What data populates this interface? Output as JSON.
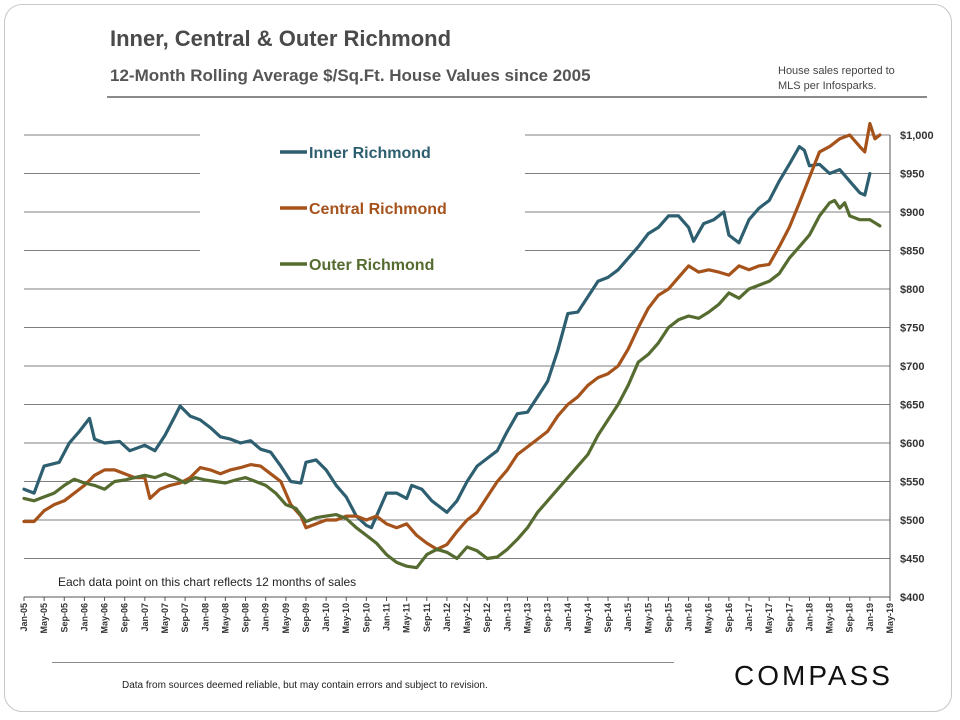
{
  "header": {
    "title": "Inner, Central & Outer Richmond",
    "subtitle": "12-Month Rolling Average $/Sq.Ft. House Values since 2005",
    "source_line1": "House sales reported to",
    "source_line2": "MLS per Infosparks."
  },
  "footer": {
    "note": "Each data point on this chart reflects 12 months of sales",
    "disclaimer": "Data from sources deemed reliable, but may contain errors and subject to revision.",
    "brand": "COMPASS"
  },
  "colors": {
    "inner": "#2e5f70",
    "central": "#a5521b",
    "outer": "#556b2f",
    "grid": "#7f7f7f"
  },
  "chart_data": {
    "type": "line",
    "title": "12-Month Rolling Average $/Sq.Ft. House Values since 2005",
    "ylim": [
      400,
      1000
    ],
    "yticks": [
      400,
      450,
      500,
      550,
      600,
      650,
      700,
      750,
      800,
      850,
      900,
      950,
      1000
    ],
    "ytick_labels": [
      "$400",
      "$450",
      "$500",
      "$550",
      "$600",
      "$650",
      "$700",
      "$750",
      "$800",
      "$850",
      "$900",
      "$950",
      "$1,000"
    ],
    "x_labels": [
      "Jan-05",
      "May-05",
      "Sep-05",
      "Jan-06",
      "May-06",
      "Sep-06",
      "Jan-07",
      "May-07",
      "Sep-07",
      "Jan-08",
      "May-08",
      "Sep-08",
      "Jan-09",
      "May-09",
      "Sep-09",
      "Jan-10",
      "May-10",
      "Sep-10",
      "Jan-11",
      "May-11",
      "Sep-11",
      "Jan-12",
      "May-12",
      "Sep-12",
      "Jan-13",
      "May-13",
      "Sep-13",
      "Jan-14",
      "May-14",
      "Sep-14",
      "Jan-15",
      "May-15",
      "Sep-15",
      "Jan-16",
      "May-16",
      "Sep-16",
      "Jan-17",
      "May-17",
      "Sep-17",
      "Jan-18",
      "May-18",
      "Sep-18",
      "Jan-19",
      "May-19"
    ],
    "grid": "horizontal",
    "legend_position": "top-left",
    "series": [
      {
        "name": "Inner Richmond",
        "key": "inner",
        "points": [
          [
            0,
            540
          ],
          [
            2,
            535
          ],
          [
            4,
            570
          ],
          [
            7,
            575
          ],
          [
            9,
            600
          ],
          [
            11,
            615
          ],
          [
            13,
            632
          ],
          [
            14,
            605
          ],
          [
            16,
            600
          ],
          [
            19,
            602
          ],
          [
            21,
            590
          ],
          [
            24,
            597
          ],
          [
            26,
            590
          ],
          [
            28,
            610
          ],
          [
            30,
            635
          ],
          [
            31,
            648
          ],
          [
            33,
            635
          ],
          [
            35,
            630
          ],
          [
            37,
            620
          ],
          [
            39,
            608
          ],
          [
            41,
            605
          ],
          [
            43,
            600
          ],
          [
            45,
            603
          ],
          [
            47,
            592
          ],
          [
            49,
            588
          ],
          [
            51,
            570
          ],
          [
            53,
            550
          ],
          [
            55,
            548
          ],
          [
            56,
            575
          ],
          [
            58,
            578
          ],
          [
            60,
            565
          ],
          [
            62,
            545
          ],
          [
            64,
            530
          ],
          [
            66,
            505
          ],
          [
            68,
            493
          ],
          [
            69,
            490
          ],
          [
            71,
            520
          ],
          [
            72,
            535
          ],
          [
            74,
            535
          ],
          [
            76,
            528
          ],
          [
            77,
            545
          ],
          [
            79,
            540
          ],
          [
            81,
            525
          ],
          [
            84,
            510
          ],
          [
            86,
            525
          ],
          [
            88,
            550
          ],
          [
            90,
            570
          ],
          [
            92,
            580
          ],
          [
            94,
            590
          ],
          [
            96,
            615
          ],
          [
            98,
            638
          ],
          [
            100,
            640
          ],
          [
            102,
            660
          ],
          [
            104,
            680
          ],
          [
            106,
            720
          ],
          [
            108,
            768
          ],
          [
            110,
            770
          ],
          [
            112,
            790
          ],
          [
            114,
            810
          ],
          [
            116,
            815
          ],
          [
            118,
            825
          ],
          [
            120,
            840
          ],
          [
            122,
            855
          ],
          [
            124,
            872
          ],
          [
            126,
            880
          ],
          [
            128,
            895
          ],
          [
            130,
            895
          ],
          [
            132,
            880
          ],
          [
            133,
            862
          ],
          [
            135,
            885
          ],
          [
            137,
            890
          ],
          [
            139,
            900
          ],
          [
            140,
            870
          ],
          [
            142,
            860
          ],
          [
            144,
            890
          ],
          [
            146,
            905
          ],
          [
            148,
            915
          ],
          [
            150,
            940
          ],
          [
            152,
            962
          ],
          [
            154,
            985
          ],
          [
            155,
            980
          ],
          [
            156,
            960
          ],
          [
            158,
            962
          ],
          [
            160,
            950
          ],
          [
            162,
            955
          ],
          [
            164,
            940
          ],
          [
            166,
            925
          ],
          [
            167,
            922
          ],
          [
            168,
            950
          ]
        ]
      },
      {
        "name": "Central Richmond",
        "key": "central",
        "points": [
          [
            0,
            498
          ],
          [
            2,
            498
          ],
          [
            4,
            512
          ],
          [
            6,
            520
          ],
          [
            8,
            525
          ],
          [
            10,
            535
          ],
          [
            12,
            545
          ],
          [
            14,
            558
          ],
          [
            16,
            565
          ],
          [
            18,
            565
          ],
          [
            20,
            560
          ],
          [
            22,
            555
          ],
          [
            24,
            555
          ],
          [
            25,
            528
          ],
          [
            27,
            540
          ],
          [
            29,
            545
          ],
          [
            31,
            548
          ],
          [
            33,
            555
          ],
          [
            35,
            568
          ],
          [
            37,
            565
          ],
          [
            39,
            560
          ],
          [
            41,
            565
          ],
          [
            43,
            568
          ],
          [
            45,
            572
          ],
          [
            47,
            570
          ],
          [
            49,
            560
          ],
          [
            51,
            550
          ],
          [
            53,
            520
          ],
          [
            55,
            505
          ],
          [
            56,
            490
          ],
          [
            58,
            495
          ],
          [
            60,
            500
          ],
          [
            62,
            500
          ],
          [
            64,
            505
          ],
          [
            66,
            505
          ],
          [
            68,
            500
          ],
          [
            70,
            505
          ],
          [
            72,
            495
          ],
          [
            74,
            490
          ],
          [
            76,
            495
          ],
          [
            78,
            480
          ],
          [
            80,
            470
          ],
          [
            82,
            462
          ],
          [
            84,
            468
          ],
          [
            86,
            485
          ],
          [
            88,
            500
          ],
          [
            90,
            510
          ],
          [
            92,
            530
          ],
          [
            94,
            550
          ],
          [
            96,
            565
          ],
          [
            98,
            585
          ],
          [
            100,
            595
          ],
          [
            102,
            605
          ],
          [
            104,
            615
          ],
          [
            106,
            635
          ],
          [
            108,
            650
          ],
          [
            110,
            660
          ],
          [
            112,
            675
          ],
          [
            114,
            685
          ],
          [
            116,
            690
          ],
          [
            118,
            700
          ],
          [
            120,
            722
          ],
          [
            122,
            750
          ],
          [
            124,
            775
          ],
          [
            126,
            792
          ],
          [
            128,
            800
          ],
          [
            130,
            815
          ],
          [
            132,
            830
          ],
          [
            134,
            822
          ],
          [
            136,
            825
          ],
          [
            138,
            822
          ],
          [
            140,
            818
          ],
          [
            142,
            830
          ],
          [
            144,
            825
          ],
          [
            146,
            830
          ],
          [
            148,
            832
          ],
          [
            150,
            855
          ],
          [
            152,
            880
          ],
          [
            154,
            912
          ],
          [
            156,
            945
          ],
          [
            158,
            978
          ],
          [
            160,
            985
          ],
          [
            162,
            995
          ],
          [
            164,
            1000
          ],
          [
            166,
            985
          ],
          [
            167,
            978
          ],
          [
            168,
            1015
          ],
          [
            169,
            995
          ],
          [
            170,
            1000
          ]
        ]
      },
      {
        "name": "Outer Richmond",
        "key": "outer",
        "points": [
          [
            0,
            528
          ],
          [
            2,
            525
          ],
          [
            4,
            530
          ],
          [
            6,
            535
          ],
          [
            8,
            545
          ],
          [
            10,
            553
          ],
          [
            12,
            548
          ],
          [
            14,
            545
          ],
          [
            16,
            540
          ],
          [
            18,
            550
          ],
          [
            20,
            552
          ],
          [
            22,
            555
          ],
          [
            24,
            558
          ],
          [
            26,
            555
          ],
          [
            28,
            560
          ],
          [
            30,
            555
          ],
          [
            32,
            548
          ],
          [
            34,
            555
          ],
          [
            36,
            552
          ],
          [
            38,
            550
          ],
          [
            40,
            548
          ],
          [
            42,
            552
          ],
          [
            44,
            555
          ],
          [
            46,
            550
          ],
          [
            48,
            545
          ],
          [
            50,
            535
          ],
          [
            52,
            520
          ],
          [
            54,
            515
          ],
          [
            56,
            498
          ],
          [
            58,
            503
          ],
          [
            60,
            505
          ],
          [
            62,
            507
          ],
          [
            64,
            502
          ],
          [
            66,
            490
          ],
          [
            68,
            480
          ],
          [
            70,
            470
          ],
          [
            72,
            455
          ],
          [
            74,
            445
          ],
          [
            76,
            440
          ],
          [
            78,
            438
          ],
          [
            80,
            455
          ],
          [
            82,
            462
          ],
          [
            84,
            458
          ],
          [
            86,
            450
          ],
          [
            88,
            465
          ],
          [
            90,
            460
          ],
          [
            92,
            450
          ],
          [
            94,
            452
          ],
          [
            96,
            462
          ],
          [
            98,
            475
          ],
          [
            100,
            490
          ],
          [
            102,
            510
          ],
          [
            104,
            525
          ],
          [
            106,
            540
          ],
          [
            108,
            555
          ],
          [
            110,
            570
          ],
          [
            112,
            585
          ],
          [
            114,
            610
          ],
          [
            116,
            630
          ],
          [
            118,
            650
          ],
          [
            120,
            675
          ],
          [
            122,
            705
          ],
          [
            124,
            715
          ],
          [
            126,
            730
          ],
          [
            128,
            750
          ],
          [
            130,
            760
          ],
          [
            132,
            765
          ],
          [
            134,
            762
          ],
          [
            136,
            770
          ],
          [
            138,
            780
          ],
          [
            140,
            795
          ],
          [
            142,
            788
          ],
          [
            144,
            800
          ],
          [
            146,
            805
          ],
          [
            148,
            810
          ],
          [
            150,
            820
          ],
          [
            152,
            840
          ],
          [
            154,
            855
          ],
          [
            156,
            870
          ],
          [
            158,
            895
          ],
          [
            160,
            912
          ],
          [
            161,
            915
          ],
          [
            162,
            905
          ],
          [
            163,
            912
          ],
          [
            164,
            895
          ],
          [
            166,
            890
          ],
          [
            168,
            890
          ],
          [
            170,
            882
          ]
        ]
      }
    ]
  }
}
